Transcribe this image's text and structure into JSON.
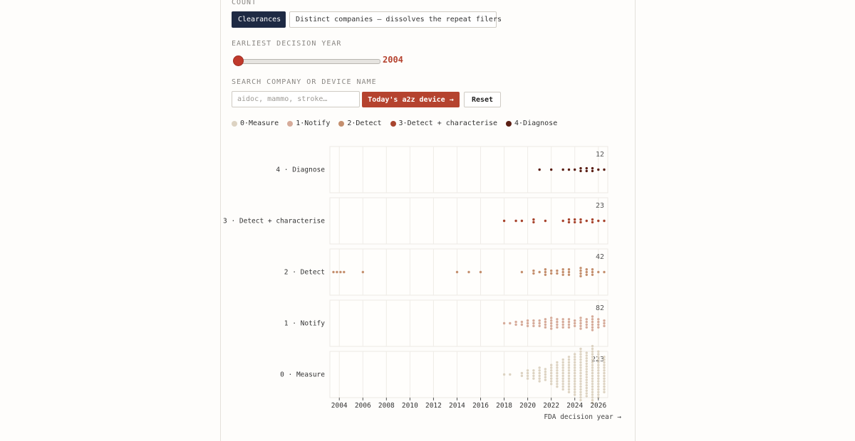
{
  "controls": {
    "count_label": "COUNT",
    "count_options": [
      "Clearances",
      "Distinct companies — dissolves the repeat filers"
    ],
    "year_label": "EARLIEST DECISION YEAR",
    "year_value": 2004,
    "search_label": "SEARCH COMPANY OR DEVICE NAME",
    "search_placeholder": "aidoc, mammo, stroke…",
    "today_button": "Today's a2z device →",
    "reset_button": "Reset"
  },
  "legend": [
    {
      "label": "0·Measure",
      "color": "#ddd3c2"
    },
    {
      "label": "1·Notify",
      "color": "#d6ab9a"
    },
    {
      "label": "2·Detect",
      "color": "#c48f6e"
    },
    {
      "label": "3·Detect + characterise",
      "color": "#a8452e"
    },
    {
      "label": "4·Diagnose",
      "color": "#5b1f14"
    }
  ],
  "chart_data": {
    "type": "scatter",
    "xlabel": "FDA decision year →",
    "xlim": [
      2003.2,
      2026.8
    ],
    "x_ticks": [
      2004,
      2006,
      2008,
      2010,
      2012,
      2014,
      2016,
      2018,
      2020,
      2022,
      2024,
      2026
    ],
    "rows": [
      {
        "label": "4 · Diagnose",
        "color": "#5b1f14",
        "total": 12,
        "counts": [
          [
            2021,
            1
          ],
          [
            2022,
            1
          ],
          [
            2023,
            1
          ],
          [
            2023.5,
            1
          ],
          [
            2024,
            1
          ],
          [
            2024.5,
            2
          ],
          [
            2025,
            2
          ],
          [
            2025.5,
            2
          ],
          [
            2026,
            1
          ],
          [
            2026.5,
            1
          ]
        ]
      },
      {
        "label": "3 · Detect + characterise",
        "color": "#a8452e",
        "total": 23,
        "counts": [
          [
            2018,
            1
          ],
          [
            2019,
            1
          ],
          [
            2019.5,
            1
          ],
          [
            2020.5,
            2
          ],
          [
            2021.5,
            1
          ],
          [
            2023,
            1
          ],
          [
            2023.5,
            2
          ],
          [
            2024,
            2
          ],
          [
            2024.5,
            2
          ],
          [
            2025,
            1
          ],
          [
            2025.5,
            2
          ],
          [
            2026,
            1
          ],
          [
            2026.5,
            1
          ]
        ]
      },
      {
        "label": "2 · Detect",
        "color": "#c48f6e",
        "total": 42,
        "counts": [
          [
            2003.5,
            1
          ],
          [
            2003.8,
            1
          ],
          [
            2004.1,
            1
          ],
          [
            2004.4,
            1
          ],
          [
            2006,
            1
          ],
          [
            2014,
            1
          ],
          [
            2015,
            1
          ],
          [
            2016,
            1
          ],
          [
            2019.5,
            1
          ],
          [
            2020.5,
            2
          ],
          [
            2021,
            1
          ],
          [
            2021.5,
            3
          ],
          [
            2022,
            2
          ],
          [
            2022.5,
            2
          ],
          [
            2023,
            3
          ],
          [
            2023.5,
            3
          ],
          [
            2024.5,
            4
          ],
          [
            2025,
            3
          ],
          [
            2025.5,
            3
          ],
          [
            2026,
            1
          ],
          [
            2026.5,
            1
          ]
        ]
      },
      {
        "label": "1 · Notify",
        "color": "#d6ab9a",
        "total": 82,
        "counts": [
          [
            2018,
            1
          ],
          [
            2018.5,
            1
          ],
          [
            2019,
            2
          ],
          [
            2019.5,
            2
          ],
          [
            2020,
            3
          ],
          [
            2020.5,
            3
          ],
          [
            2021,
            3
          ],
          [
            2021.5,
            4
          ],
          [
            2022,
            5
          ],
          [
            2022.5,
            4
          ],
          [
            2023,
            4
          ],
          [
            2023.5,
            4
          ],
          [
            2024,
            3
          ],
          [
            2024.5,
            5
          ],
          [
            2025,
            4
          ],
          [
            2025.5,
            6
          ],
          [
            2026,
            4
          ],
          [
            2026.5,
            3
          ]
        ]
      },
      {
        "label": "0 · Measure",
        "color": "#ddd3c2",
        "total": 223,
        "counts": [
          [
            2018,
            1
          ],
          [
            2018.5,
            1
          ],
          [
            2019.5,
            2
          ],
          [
            2020,
            4
          ],
          [
            2020.5,
            4
          ],
          [
            2021,
            6
          ],
          [
            2021.5,
            5
          ],
          [
            2022,
            8
          ],
          [
            2022.5,
            10
          ],
          [
            2023,
            12
          ],
          [
            2023.5,
            14
          ],
          [
            2024,
            16
          ],
          [
            2024.5,
            20
          ],
          [
            2025,
            17
          ],
          [
            2025.5,
            22
          ],
          [
            2026,
            18
          ],
          [
            2026.5,
            14
          ]
        ]
      }
    ]
  }
}
